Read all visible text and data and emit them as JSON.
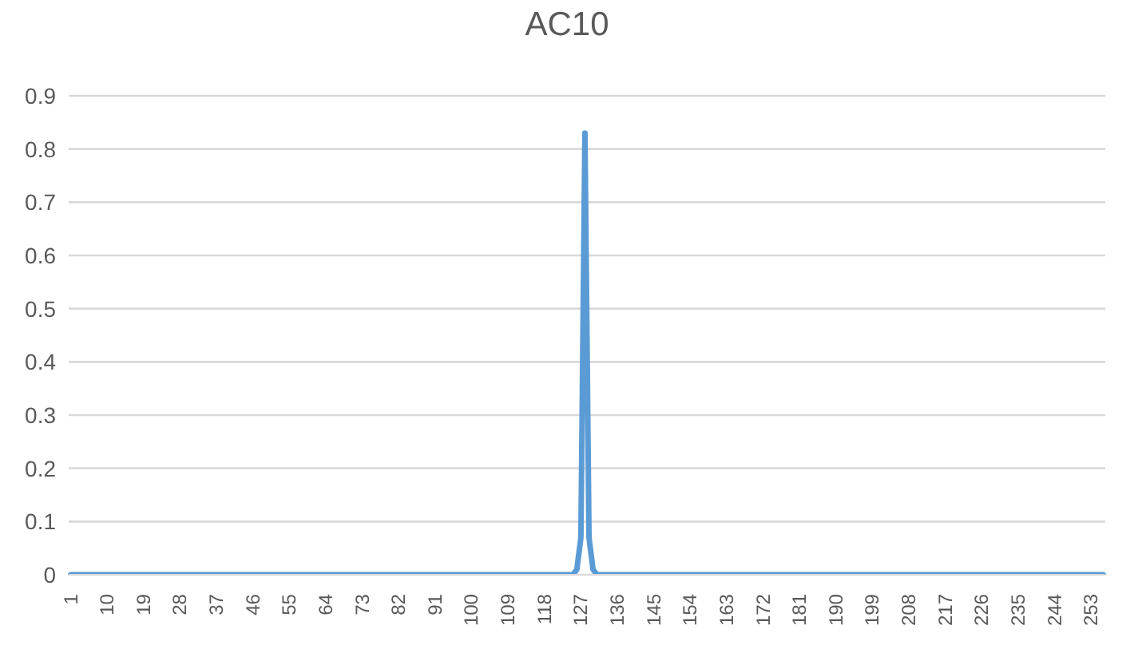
{
  "chart_data": {
    "type": "line",
    "title": "AC10",
    "categories": [
      "1",
      null,
      null,
      null,
      null,
      null,
      null,
      null,
      null,
      "10",
      null,
      null,
      null,
      null,
      null,
      null,
      null,
      null,
      "19",
      null,
      null,
      null,
      null,
      null,
      null,
      null,
      null,
      "28",
      null,
      null,
      null,
      null,
      null,
      null,
      null,
      null,
      "37",
      null,
      null,
      null,
      null,
      null,
      null,
      null,
      null,
      "46",
      null,
      null,
      null,
      null,
      null,
      null,
      null,
      null,
      "55",
      null,
      null,
      null,
      null,
      null,
      null,
      null,
      null,
      "64",
      null,
      null,
      null,
      null,
      null,
      null,
      null,
      null,
      "73",
      null,
      null,
      null,
      null,
      null,
      null,
      null,
      null,
      "82",
      null,
      null,
      null,
      null,
      null,
      null,
      null,
      null,
      "91",
      null,
      null,
      null,
      null,
      null,
      null,
      null,
      null,
      "100",
      null,
      null,
      null,
      null,
      null,
      null,
      null,
      null,
      "109",
      null,
      null,
      null,
      null,
      null,
      null,
      null,
      null,
      "118",
      null,
      null,
      null,
      null,
      null,
      null,
      null,
      null,
      "127",
      null,
      null,
      null,
      null,
      null,
      null,
      null,
      null,
      "136",
      null,
      null,
      null,
      null,
      null,
      null,
      null,
      null,
      "145",
      null,
      null,
      null,
      null,
      null,
      null,
      null,
      null,
      "154",
      null,
      null,
      null,
      null,
      null,
      null,
      null,
      null,
      "163",
      null,
      null,
      null,
      null,
      null,
      null,
      null,
      null,
      "172",
      null,
      null,
      null,
      null,
      null,
      null,
      null,
      null,
      "181",
      null,
      null,
      null,
      null,
      null,
      null,
      null,
      null,
      "190",
      null,
      null,
      null,
      null,
      null,
      null,
      null,
      null,
      "199",
      null,
      null,
      null,
      null,
      null,
      null,
      null,
      null,
      "208",
      null,
      null,
      null,
      null,
      null,
      null,
      null,
      null,
      "217",
      null,
      null,
      null,
      null,
      null,
      null,
      null,
      null,
      "226",
      null,
      null,
      null,
      null,
      null,
      null,
      null,
      null,
      "235",
      null,
      null,
      null,
      null,
      null,
      null,
      null,
      null,
      "244",
      null,
      null,
      null,
      null,
      null,
      null,
      null,
      null,
      "253",
      null,
      null,
      null
    ],
    "series": [
      {
        "color": "#5b9bd5",
        "values": [
          0,
          0,
          0,
          0,
          0,
          0,
          0,
          0,
          0,
          0,
          0,
          0,
          0,
          0,
          0,
          0,
          0,
          0,
          0,
          0,
          0,
          0,
          0,
          0,
          0,
          0,
          0,
          0,
          0,
          0,
          0,
          0,
          0,
          0,
          0,
          0,
          0,
          0,
          0,
          0,
          0,
          0,
          0,
          0,
          0,
          0,
          0,
          0,
          0,
          0,
          0,
          0,
          0,
          0,
          0,
          0,
          0,
          0,
          0,
          0,
          0,
          0,
          0,
          0,
          0,
          0,
          0,
          0,
          0,
          0,
          0,
          0,
          0,
          0,
          0,
          0,
          0,
          0,
          0,
          0,
          0,
          0,
          0,
          0,
          0,
          0,
          0,
          0,
          0,
          0,
          0,
          0,
          0,
          0,
          0,
          0,
          0,
          0,
          0,
          0,
          0,
          0,
          0,
          0,
          0,
          0,
          0,
          0,
          0,
          0,
          0,
          0,
          0,
          0,
          0,
          0,
          0,
          0,
          0,
          0,
          0,
          0,
          0,
          0,
          0,
          0.01,
          0.07,
          0.83,
          0.07,
          0.01,
          0,
          0,
          0,
          0,
          0,
          0,
          0,
          0,
          0,
          0,
          0,
          0,
          0,
          0,
          0,
          0,
          0,
          0,
          0,
          0,
          0,
          0,
          0,
          0,
          0,
          0,
          0,
          0,
          0,
          0,
          0,
          0,
          0,
          0,
          0,
          0,
          0,
          0,
          0,
          0,
          0,
          0,
          0,
          0,
          0,
          0,
          0,
          0,
          0,
          0,
          0,
          0,
          0,
          0,
          0,
          0,
          0,
          0,
          0,
          0,
          0,
          0,
          0,
          0,
          0,
          0,
          0,
          0,
          0,
          0,
          0,
          0,
          0,
          0,
          0,
          0,
          0,
          0,
          0,
          0,
          0,
          0,
          0,
          0,
          0,
          0,
          0,
          0,
          0,
          0,
          0,
          0,
          0,
          0,
          0,
          0,
          0,
          0,
          0,
          0,
          0,
          0,
          0,
          0,
          0,
          0,
          0,
          0,
          0,
          0,
          0,
          0,
          0,
          0,
          0,
          0,
          0,
          0,
          0,
          0,
          0,
          0,
          0,
          0,
          0,
          0
        ]
      }
    ],
    "ylim": [
      0,
      0.9
    ],
    "yticks": [
      0,
      0.1,
      0.2,
      0.3,
      0.4,
      0.5,
      0.6,
      0.7,
      0.8,
      0.9
    ],
    "grid": "y",
    "legend": false,
    "marker": "none",
    "line_style": "solid"
  }
}
